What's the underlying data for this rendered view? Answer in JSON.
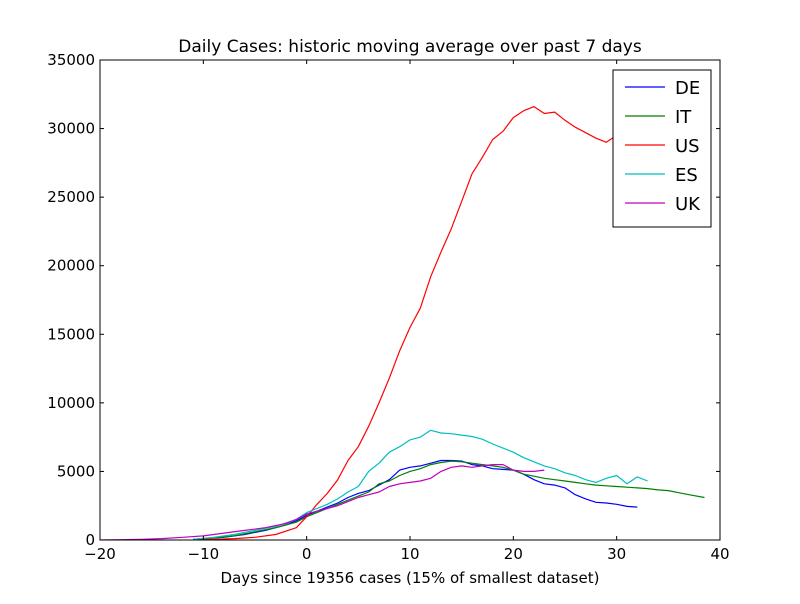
{
  "chart_data": {
    "type": "line",
    "title": "Daily Cases: historic moving average over past 7 days",
    "xlabel": "Days since 19356 cases (15% of smallest dataset)",
    "ylabel": "",
    "xlim": [
      -20,
      40
    ],
    "ylim": [
      0,
      35000
    ],
    "xticks": [
      -20,
      -10,
      0,
      10,
      20,
      30,
      40
    ],
    "yticks": [
      0,
      5000,
      10000,
      15000,
      20000,
      25000,
      30000,
      35000
    ],
    "xtick_labels": [
      "−20",
      "−10",
      "0",
      "10",
      "20",
      "30",
      "40"
    ],
    "ytick_labels": [
      "0",
      "5000",
      "10000",
      "15000",
      "20000",
      "25000",
      "30000",
      "35000"
    ],
    "grid": false,
    "legend_position": "top-right",
    "series": [
      {
        "name": "DE",
        "color": "#0000ff",
        "x": [
          -11,
          -10,
          -8,
          -6,
          -4,
          -2,
          -1,
          0,
          1,
          2,
          3,
          4,
          5,
          6,
          7,
          8,
          9,
          10,
          11,
          12,
          13,
          14,
          15,
          16,
          17,
          18,
          19,
          20,
          21,
          22,
          23,
          24,
          25,
          26,
          27,
          28,
          29,
          30,
          31,
          32
        ],
        "y": [
          50,
          100,
          200,
          400,
          700,
          1100,
          1400,
          1800,
          2100,
          2400,
          2700,
          3100,
          3400,
          3600,
          4000,
          4400,
          5100,
          5300,
          5400,
          5600,
          5800,
          5800,
          5750,
          5500,
          5400,
          5200,
          5150,
          5100,
          4800,
          4400,
          4100,
          4000,
          3800,
          3300,
          3000,
          2750,
          2700,
          2600,
          2450,
          2400
        ]
      },
      {
        "name": "IT",
        "color": "#008000",
        "x": [
          -11,
          -9,
          -7,
          -5,
          -3,
          -1,
          0,
          1,
          2,
          3,
          4,
          5,
          6,
          7,
          8,
          9,
          10,
          11,
          12,
          13,
          14,
          15,
          16,
          17,
          18,
          19,
          20,
          21,
          22,
          23,
          24,
          25,
          26,
          27,
          28,
          29,
          30,
          31,
          32,
          33,
          34,
          35,
          36,
          37,
          38.5
        ],
        "y": [
          50,
          150,
          300,
          600,
          900,
          1300,
          1700,
          2000,
          2300,
          2600,
          2900,
          3200,
          3500,
          4100,
          4300,
          4700,
          5000,
          5200,
          5500,
          5650,
          5750,
          5700,
          5600,
          5500,
          5400,
          5300,
          5100,
          4800,
          4650,
          4500,
          4400,
          4300,
          4200,
          4100,
          4000,
          3950,
          3900,
          3850,
          3800,
          3750,
          3650,
          3600,
          3450,
          3300,
          3100
        ]
      },
      {
        "name": "US",
        "color": "#ff0000",
        "x": [
          -11,
          -9,
          -7,
          -5,
          -3,
          -1,
          0,
          1,
          2,
          3,
          4,
          5,
          6,
          7,
          8,
          9,
          10,
          11,
          12,
          13,
          14,
          15,
          16,
          17,
          18,
          19,
          20,
          21,
          22,
          23,
          24,
          25,
          26,
          27,
          28,
          29,
          30,
          31
        ],
        "y": [
          0,
          50,
          100,
          200,
          400,
          900,
          1700,
          2600,
          3400,
          4400,
          5800,
          6800,
          8300,
          10000,
          11800,
          13800,
          15500,
          16900,
          19200,
          21000,
          22700,
          24700,
          26700,
          27900,
          29200,
          29800,
          30800,
          31300,
          31600,
          31100,
          31200,
          30600,
          30100,
          29700,
          29300,
          29000,
          29500,
          30000
        ]
      },
      {
        "name": "ES",
        "color": "#00bfbf",
        "x": [
          -11,
          -9,
          -7,
          -5,
          -3,
          -1,
          0,
          1,
          2,
          3,
          4,
          5,
          6,
          7,
          8,
          9,
          10,
          11,
          12,
          13,
          14,
          15,
          16,
          17,
          18,
          19,
          20,
          21,
          22,
          23,
          24,
          25,
          26,
          27,
          28,
          29,
          30,
          31,
          32,
          33
        ],
        "y": [
          50,
          200,
          400,
          700,
          1000,
          1500,
          2000,
          2300,
          2600,
          3000,
          3500,
          3900,
          5000,
          5600,
          6400,
          6800,
          7300,
          7500,
          8000,
          7800,
          7750,
          7650,
          7550,
          7350,
          7000,
          6700,
          6400,
          6000,
          5700,
          5400,
          5200,
          4900,
          4700,
          4400,
          4200,
          4500,
          4700,
          4100,
          4600,
          4300
        ]
      },
      {
        "name": "UK",
        "color": "#bf00bf",
        "x": [
          -20,
          -18,
          -16,
          -14,
          -12,
          -10,
          -8,
          -6,
          -4,
          -2,
          -1,
          0,
          1,
          2,
          3,
          4,
          5,
          6,
          7,
          8,
          9,
          10,
          11,
          12,
          13,
          14,
          15,
          16,
          17,
          18,
          19,
          20,
          21,
          22,
          23
        ],
        "y": [
          0,
          20,
          50,
          100,
          200,
          300,
          500,
          700,
          900,
          1200,
          1500,
          1900,
          2100,
          2300,
          2500,
          2800,
          3100,
          3300,
          3500,
          3900,
          4100,
          4200,
          4300,
          4500,
          5000,
          5300,
          5400,
          5300,
          5400,
          5500,
          5500,
          5100,
          5000,
          5000,
          5100
        ]
      }
    ]
  }
}
